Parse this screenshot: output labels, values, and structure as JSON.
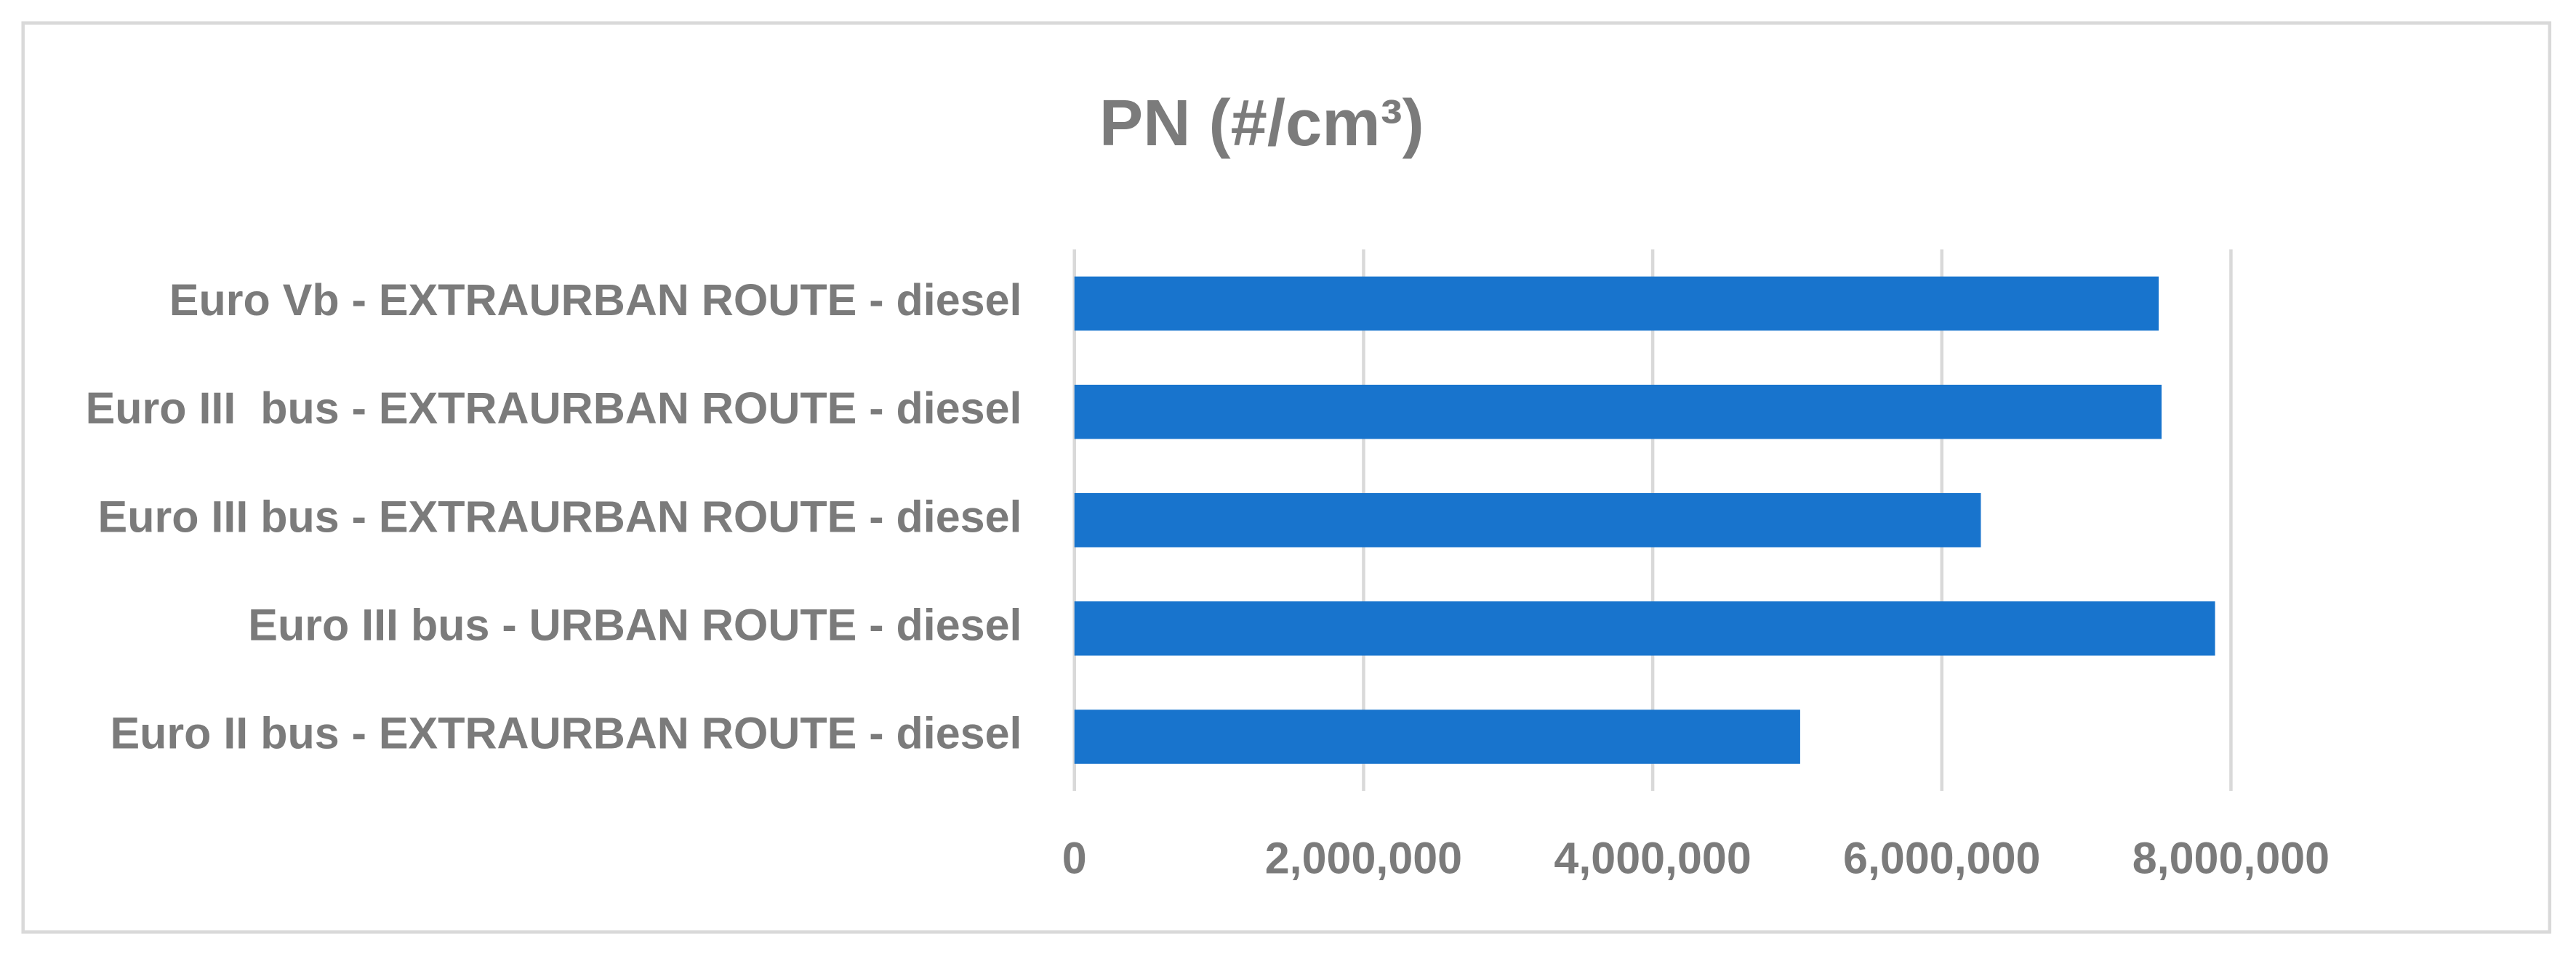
{
  "chart_data": {
    "type": "barh",
    "title": "PN (#/cm³)",
    "categories": [
      "Euro Vb - EXTRAURBAN ROUTE - diesel",
      "Euro III  bus - EXTRAURBAN ROUTE - diesel",
      "Euro III bus - EXTRAURBAN ROUTE - diesel",
      "Euro III bus - URBAN ROUTE - diesel",
      "Euro II bus - EXTRAURBAN ROUTE - diesel"
    ],
    "values": [
      7500000,
      7520000,
      6270000,
      7890000,
      5020000
    ],
    "color": "#1874cd",
    "xlim": [
      0,
      8000000
    ],
    "xticks": [
      0,
      {
        "value": 2000000,
        "label": "2,000,000"
      },
      {
        "value": 4000000,
        "label": "4,000,000"
      },
      {
        "value": 6000000,
        "label": "6,000,000"
      },
      {
        "value": 8000000,
        "label": "8,000,000"
      }
    ],
    "grid": true
  }
}
